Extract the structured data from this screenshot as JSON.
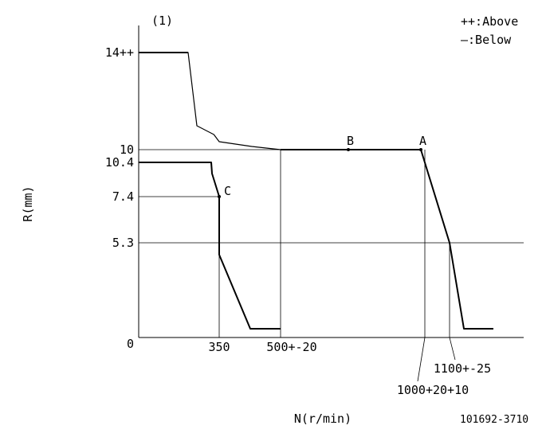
{
  "chart_data": {
    "type": "line",
    "title": "(1)",
    "xlabel": "N(r/min)",
    "ylabel": "R(mm)",
    "drawing_number": "101692-3710",
    "legend": {
      "placement": "top-right",
      "entries": [
        "++:Above",
        "—:Below"
      ]
    },
    "xlim": [
      0,
      1350
    ],
    "ylim": [
      0,
      15
    ],
    "x_tick_labels": [
      {
        "x": 350,
        "label": "350"
      },
      {
        "x": 500,
        "label": "500+-20"
      },
      {
        "x": 1000,
        "label": "1000+20+10"
      },
      {
        "x": 1100,
        "label": "1100+-25"
      }
    ],
    "y_tick_labels": [
      {
        "y": 0,
        "label": "0"
      },
      {
        "y": 5.3,
        "label": "5.3"
      },
      {
        "y": 7.4,
        "label": "7.4"
      },
      {
        "y": 10,
        "label": "10"
      },
      {
        "y": 10.4,
        "label": "10.4"
      },
      {
        "y": 14,
        "label": "14++"
      }
    ],
    "series": [
      {
        "points": [
          {
            "x": 0,
            "y": 14
          },
          {
            "x": 175,
            "y": 14
          },
          {
            "x": 205,
            "y": 11
          },
          {
            "x": 270,
            "y": 10.75
          },
          {
            "x": 325,
            "y": 10.5
          },
          {
            "x": 400,
            "y": 10.2
          },
          {
            "x": 500,
            "y": 10
          }
        ]
      },
      {
        "points": [
          {
            "x": 500,
            "y": 10
          },
          {
            "x": 1000,
            "y": 10
          },
          {
            "x": 1100,
            "y": 5.3
          },
          {
            "x": 1150,
            "y": 0.3
          },
          {
            "x": 1250,
            "y": 0.3
          }
        ]
      },
      {
        "points": [
          {
            "x": 0,
            "y": 10.4
          },
          {
            "x": 260,
            "y": 10.4
          },
          {
            "x": 263,
            "y": 9.8
          },
          {
            "x": 290,
            "y": 7.4
          },
          {
            "x": 340,
            "y": 5.0
          },
          {
            "x": 395,
            "y": 0.3
          },
          {
            "x": 500,
            "y": 0.3
          }
        ]
      }
    ],
    "reference_lines": [
      {
        "orientation": "horizontal",
        "y": 10,
        "x_from": 0,
        "x_to": 500
      },
      {
        "orientation": "horizontal",
        "y": 7.4,
        "x_from": 0,
        "x_to": 290
      },
      {
        "orientation": "horizontal",
        "y": 5.3,
        "x_from": 0,
        "x_to": 1350
      },
      {
        "orientation": "vertical",
        "x": 290,
        "y_from": 0,
        "y_to": 7.4
      },
      {
        "orientation": "vertical",
        "x": 500,
        "y_from": 0,
        "y_to": 10
      },
      {
        "orientation": "vertical",
        "x": 1015,
        "y_from": 0,
        "y_to": 10
      },
      {
        "orientation": "vertical",
        "x": 1100,
        "y_from": 0,
        "y_to": 5.3
      }
    ],
    "annotations": [
      {
        "label": "A",
        "x": 1000,
        "y": 10
      },
      {
        "label": "B",
        "x": 750,
        "y": 10
      },
      {
        "label": "C",
        "x": 290,
        "y": 7.4
      }
    ]
  }
}
